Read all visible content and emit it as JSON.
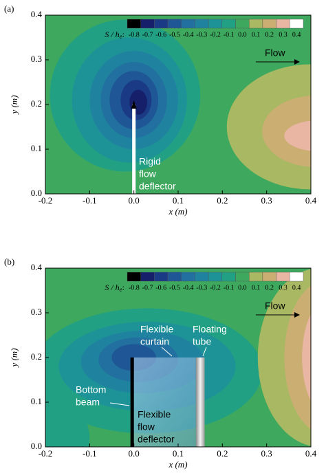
{
  "chart_data": [
    {
      "type": "contour",
      "panel_label": "(a)",
      "xlabel": "x (m)",
      "ylabel": "y (m)",
      "xlim": [
        -0.2,
        0.4
      ],
      "ylim": [
        0,
        0.4
      ],
      "xticks": [
        -0.2,
        -0.1,
        {
          "value": 0,
          "label": "0.0"
        },
        0.1,
        0.2,
        0.3,
        0.4
      ],
      "yticks": [
        {
          "value": 0,
          "label": "0.0"
        },
        0.1,
        0.2,
        0.3,
        0.4
      ],
      "colorbar_label": {
        "main": "S / h",
        "sub": "e",
        "suffix": ":"
      },
      "levels": [
        -0.8,
        -0.7,
        -0.6,
        -0.5,
        -0.4,
        -0.3,
        -0.2,
        -0.1,
        {
          "value": 0,
          "label": "0.0"
        },
        0.1,
        0.2,
        0.3,
        0.4
      ],
      "level_colors": [
        "#000000",
        "#16206a",
        "#1b3a86",
        "#1f5796",
        "#22709f",
        "#1f83a0",
        "#1e9397",
        "#21a084",
        "#3ea95e",
        "#a9b862",
        "#caae72",
        "#e9b6a4",
        "#ffffff"
      ],
      "annotations": {
        "flow": "Flow",
        "deflector": [
          "Rigid",
          "flow",
          "deflector"
        ]
      }
    },
    {
      "type": "contour",
      "panel_label": "(b)",
      "xlabel": "x (m)",
      "ylabel": "y (m)",
      "xlim": [
        -0.2,
        0.4
      ],
      "ylim": [
        0,
        0.4
      ],
      "xticks": [
        -0.2,
        -0.1,
        {
          "value": 0,
          "label": "0.0"
        },
        0.1,
        0.2,
        0.3,
        0.4
      ],
      "yticks": [
        {
          "value": 0,
          "label": "0.0"
        },
        0.1,
        0.2,
        0.3,
        0.4
      ],
      "colorbar_label": {
        "main": "S / h",
        "sub": "e",
        "suffix": ":"
      },
      "levels": [
        -0.8,
        -0.7,
        -0.6,
        -0.5,
        -0.4,
        -0.3,
        -0.2,
        -0.1,
        {
          "value": 0,
          "label": "0.0"
        },
        0.1,
        0.2,
        0.3,
        0.4
      ],
      "level_colors": [
        "#000000",
        "#16206a",
        "#1b3a86",
        "#1f5796",
        "#22709f",
        "#1f83a0",
        "#1e9397",
        "#21a084",
        "#3ea95e",
        "#a9b862",
        "#caae72",
        "#e9b6a4",
        "#ffffff"
      ],
      "annotations": {
        "flow": "Flow",
        "curtain": [
          "Flexible",
          "curtain"
        ],
        "tube": [
          "Floating",
          "tube"
        ],
        "beam": [
          "Bottom",
          "beam"
        ],
        "deflector": [
          "Flexible",
          "flow",
          "deflector"
        ]
      }
    }
  ]
}
